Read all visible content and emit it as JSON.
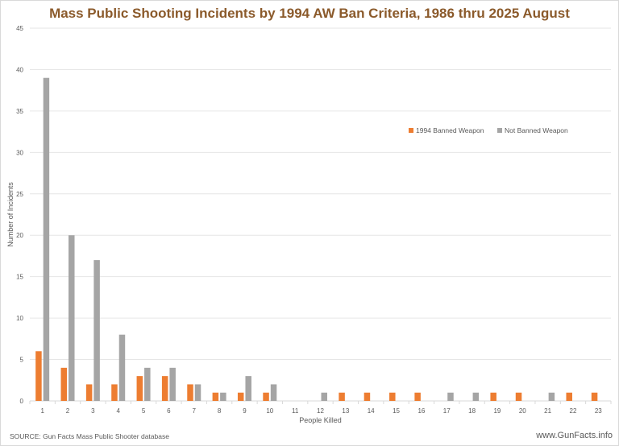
{
  "chart_data": {
    "type": "bar",
    "title": "Mass Public Shooting Incidents by 1994 AW Ban Criteria, 1986 thru 2025 August",
    "xlabel": "People Killed",
    "ylabel": "Number of Incidents",
    "ylim": [
      0,
      45
    ],
    "yticks": [
      0,
      5,
      10,
      15,
      20,
      25,
      30,
      35,
      40,
      45
    ],
    "grid": true,
    "legend_position": "right",
    "categories": [
      "1",
      "2",
      "3",
      "4",
      "5",
      "6",
      "7",
      "8",
      "9",
      "10",
      "11",
      "12",
      "13",
      "14",
      "15",
      "16",
      "17",
      "18",
      "19",
      "20",
      "21",
      "22",
      "23"
    ],
    "series": [
      {
        "name": "1994 Banned Weapon",
        "color": "#ed7d31",
        "values": [
          6,
          4,
          2,
          2,
          3,
          3,
          2,
          1,
          1,
          1,
          0,
          0,
          1,
          1,
          1,
          1,
          0,
          0,
          1,
          1,
          0,
          1,
          1
        ]
      },
      {
        "name": "Not Banned Weapon",
        "color": "#a5a5a5",
        "values": [
          39,
          20,
          17,
          8,
          4,
          4,
          2,
          1,
          3,
          2,
          0,
          1,
          0,
          0,
          0,
          0,
          1,
          1,
          0,
          0,
          1,
          0,
          0
        ]
      }
    ]
  },
  "source": "SOURCE: Gun Facts Mass Public Shooter database",
  "site": "www.GunFacts.info"
}
